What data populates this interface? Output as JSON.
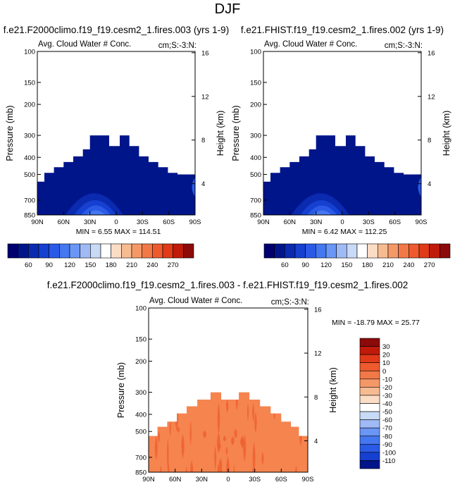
{
  "page_title": "DJF",
  "shared_axes": {
    "pressure_ticks": [
      "100",
      "150",
      "200",
      "300",
      "400",
      "500",
      "700",
      "850"
    ],
    "pressure_values": [
      100,
      150,
      200,
      300,
      400,
      500,
      700,
      850
    ],
    "height_ticks": [
      "16",
      "12",
      "8",
      "4"
    ],
    "height_values": [
      16,
      12,
      8,
      4
    ],
    "lat_ticks": [
      "90N",
      "60N",
      "30N",
      "0",
      "30S",
      "60S",
      "90S"
    ],
    "lat_values": [
      90,
      60,
      30,
      0,
      -30,
      -60,
      -90
    ],
    "ylabel_left": "Pressure (mb)",
    "ylabel_right": "Height (km)"
  },
  "colors": {
    "blue_fill": "#00158a",
    "diff_fill": "#f5844e",
    "diff_streak": "#ee6030"
  },
  "chart_data": [
    {
      "type": "heatmap",
      "title": "f.e21.F2000climo.f19_f19.cesm2_1.fires.003 (yrs 1-9)",
      "left_label": "Avg. Cloud Water # Conc.",
      "right_label": "cm;S:-3:N:",
      "min_label": "MIN =   6.55   MAX = 114.51",
      "min": 6.55,
      "max": 114.51,
      "colorbar": {
        "labels": [
          "60",
          "90",
          "120",
          "150",
          "180",
          "210",
          "240",
          "270"
        ],
        "colors": [
          "#00006e",
          "#00158a",
          "#0a2ab0",
          "#1540d0",
          "#2a5ae6",
          "#4477f0",
          "#6a96f5",
          "#9fbaf5",
          "#c8daf5",
          "#ffffff",
          "#fbdcc4",
          "#f7bb92",
          "#f59868",
          "#f27848",
          "#ee5a2e",
          "#e03a18",
          "#c01a0a",
          "#8c0a0a"
        ]
      }
    },
    {
      "type": "heatmap",
      "title": "f.e21.FHIST.f19_f19.cesm2_1.fires.002 (yrs 1-9)",
      "left_label": "Avg. Cloud Water # Conc.",
      "right_label": "cm;S:-3:N:",
      "min_label": "MIN =   6.42   MAX = 112.25",
      "min": 6.42,
      "max": 112.25,
      "colorbar": {
        "labels": [
          "60",
          "90",
          "120",
          "150",
          "180",
          "210",
          "240",
          "270"
        ],
        "colors": [
          "#00006e",
          "#00158a",
          "#0a2ab0",
          "#1540d0",
          "#2a5ae6",
          "#4477f0",
          "#6a96f5",
          "#9fbaf5",
          "#c8daf5",
          "#ffffff",
          "#fbdcc4",
          "#f7bb92",
          "#f59868",
          "#f27848",
          "#ee5a2e",
          "#e03a18",
          "#c01a0a",
          "#8c0a0a"
        ]
      }
    },
    {
      "type": "heatmap",
      "title": "f.e21.F2000climo.f19_f19.cesm2_1.fires.003 - f.e21.FHIST.f19_f19.cesm2_1.fires.002",
      "left_label": "Avg. Cloud Water # Conc.",
      "right_label": "cm;S:-3:N:",
      "min_label": "MIN = -18.79   MAX =  25.77",
      "min": -18.79,
      "max": 25.77,
      "colorbar": {
        "labels": [
          "30",
          "20",
          "10",
          "0",
          "-10",
          "-20",
          "-30",
          "-40",
          "-50",
          "-60",
          "-70",
          "-80",
          "-90",
          "-100",
          "-110"
        ],
        "colors": [
          "#8c0a0a",
          "#c01a0a",
          "#e03a18",
          "#ee5a2e",
          "#f27848",
          "#f59868",
          "#f7bb92",
          "#fbdcc4",
          "#ffffff",
          "#c8daf5",
          "#9fbaf5",
          "#6a96f5",
          "#4477f0",
          "#2a5ae6",
          "#1540d0",
          "#00158a"
        ]
      }
    }
  ]
}
